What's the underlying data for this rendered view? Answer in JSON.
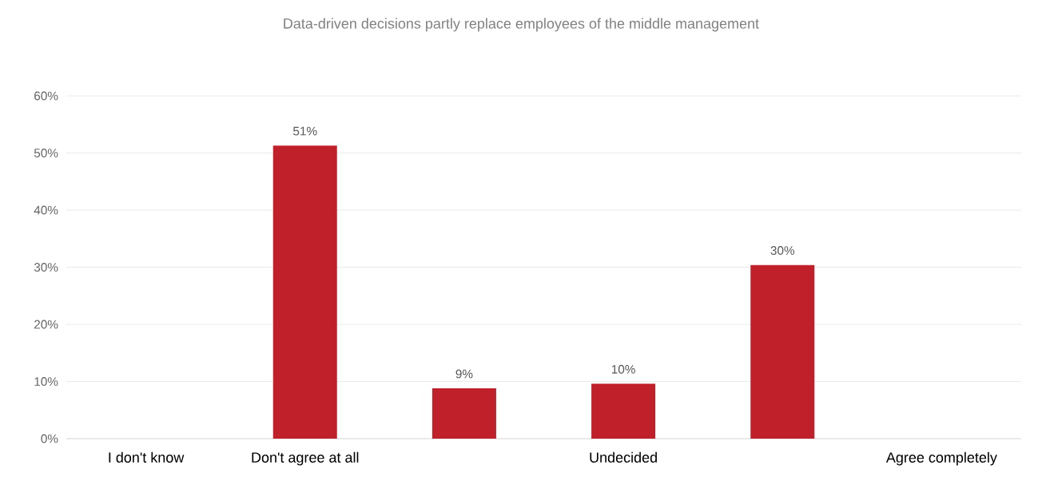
{
  "chart_data": {
    "type": "bar",
    "title": "Data-driven decisions partly replace employees of the middle management",
    "categories": [
      "I don't know",
      "Don't agree at all",
      null,
      "Undecided",
      null,
      "Agree completely"
    ],
    "values": [
      null,
      51.3,
      8.8,
      9.6,
      30.4,
      null
    ],
    "value_labels": [
      null,
      "51%",
      "9%",
      "10%",
      "30%",
      null
    ],
    "color": "#c0202a",
    "ylim": [
      0,
      60
    ],
    "yticks": [
      {
        "value": 0,
        "label": "0%"
      },
      {
        "value": 10,
        "label": "10%"
      },
      {
        "value": 20,
        "label": "20%"
      },
      {
        "value": 30,
        "label": "30%"
      },
      {
        "value": 40,
        "label": "40%"
      },
      {
        "value": 50,
        "label": "50%"
      },
      {
        "value": 60,
        "label": "60%"
      }
    ],
    "grid": "y"
  }
}
